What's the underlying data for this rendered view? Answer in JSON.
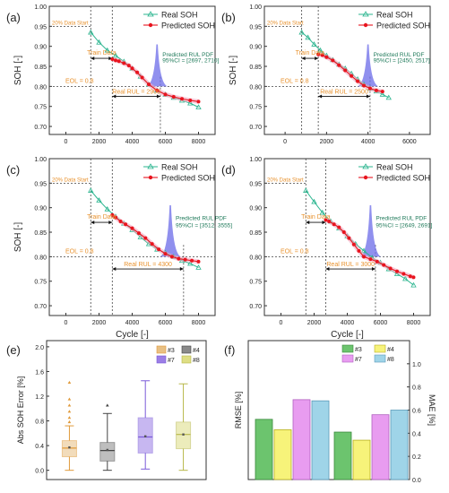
{
  "colors": {
    "real": "#2bb58f",
    "pred": "#e8141e",
    "pdf": "#6b6be8",
    "annot": "#e8922e",
    "ci": "#1f7a5a",
    "g3": "#6cc46e",
    "g4": "#f7f37a",
    "g7": "#e89cf0",
    "g8": "#9fd4e8",
    "b3": "#e8c084",
    "b4": "#8a8a8a",
    "b7": "#9b7ee6",
    "b8": "#dede84"
  },
  "chart_data": [
    {
      "id": "a",
      "panel": "(a)",
      "type": "line",
      "ylabel": "SOH [-]",
      "xlabel": "",
      "xlim": [
        -1000,
        9000
      ],
      "ylim": [
        0.68,
        1.0
      ],
      "xticks": [
        0,
        2000,
        4000,
        6000,
        8000
      ],
      "yticks": [
        0.7,
        0.75,
        0.8,
        0.85,
        0.9,
        0.95,
        1.0
      ],
      "legend": [
        "Real SOH",
        "Predicted SOH"
      ],
      "real": {
        "x": [
          1500,
          2000,
          2500,
          3000,
          3500,
          4000,
          4500,
          5000,
          5500,
          6000,
          6500,
          7000,
          7500,
          8000
        ],
        "y": [
          0.935,
          0.91,
          0.89,
          0.877,
          0.862,
          0.845,
          0.825,
          0.805,
          0.79,
          0.78,
          0.772,
          0.765,
          0.758,
          0.748
        ]
      },
      "pred": {
        "x": [
          2800,
          3000,
          3200,
          3500,
          3800,
          4000,
          4300,
          4600,
          5000,
          5500,
          6000,
          6500,
          7000,
          7500,
          8000
        ],
        "y": [
          0.868,
          0.865,
          0.863,
          0.858,
          0.852,
          0.845,
          0.835,
          0.822,
          0.805,
          0.79,
          0.78,
          0.774,
          0.769,
          0.765,
          0.762
        ]
      },
      "data_start": 1500,
      "train_end": 2800,
      "real_end": 5700,
      "pdf_peak": 5500,
      "labels": {
        "data_start": "20% Data Start",
        "train": "Train Data",
        "eol": "EOL = 0.8",
        "real_rul": "Real RUL = 2900",
        "pdf": "Predicted RUL PDF",
        "ci": "95%CI = [2697, 2710]"
      }
    },
    {
      "id": "b",
      "panel": "(b)",
      "type": "line",
      "ylabel": "SOH [-]",
      "xlabel": "",
      "xlim": [
        -1000,
        7000
      ],
      "ylim": [
        0.68,
        1.0
      ],
      "xticks": [
        0,
        2000,
        4000,
        6000
      ],
      "yticks": [
        0.7,
        0.75,
        0.8,
        0.85,
        0.9,
        0.95,
        1.0
      ],
      "legend": [
        "Real SOH",
        "Predicted SOH"
      ],
      "real": {
        "x": [
          800,
          1100,
          1400,
          1700,
          2000,
          2300,
          2600,
          2900,
          3200,
          3500,
          3800,
          4100,
          4400,
          4700,
          5000
        ],
        "y": [
          0.935,
          0.922,
          0.905,
          0.89,
          0.877,
          0.866,
          0.855,
          0.845,
          0.832,
          0.818,
          0.805,
          0.795,
          0.788,
          0.78,
          0.772
        ]
      },
      "pred": {
        "x": [
          1600,
          1800,
          2000,
          2300,
          2600,
          2900,
          3200,
          3500,
          3800,
          4100,
          4400,
          4700
        ],
        "y": [
          0.88,
          0.878,
          0.873,
          0.865,
          0.853,
          0.84,
          0.826,
          0.813,
          0.802,
          0.795,
          0.79,
          0.787
        ]
      },
      "data_start": 800,
      "train_end": 1600,
      "real_end": 4100,
      "pdf_peak": 4000,
      "labels": {
        "data_start": "20% Data Start",
        "train": "Train Data",
        "eol": "EOL = 0.8",
        "real_rul": "Real RUL = 2500",
        "pdf": "Predicted RUL PDF",
        "ci": "95%CI = [2450, 2517]"
      }
    },
    {
      "id": "c",
      "panel": "(c)",
      "type": "line",
      "ylabel": "SOH [-]",
      "xlabel": "Cycle [-]",
      "xlim": [
        -1000,
        9000
      ],
      "ylim": [
        0.68,
        1.0
      ],
      "xticks": [
        0,
        2000,
        4000,
        6000,
        8000
      ],
      "yticks": [
        0.7,
        0.75,
        0.8,
        0.85,
        0.9,
        0.95,
        1.0
      ],
      "legend": [
        "Real SOH",
        "Predicted SOH"
      ],
      "real": {
        "x": [
          1500,
          2000,
          2500,
          3000,
          3500,
          4000,
          4500,
          5000,
          5500,
          6000,
          6500,
          7000,
          7500,
          8000
        ],
        "y": [
          0.935,
          0.915,
          0.897,
          0.882,
          0.868,
          0.855,
          0.84,
          0.826,
          0.815,
          0.808,
          0.8,
          0.792,
          0.786,
          0.778
        ]
      },
      "pred": {
        "x": [
          2800,
          3000,
          3300,
          3600,
          4000,
          4400,
          4800,
          5200,
          5600,
          6000,
          6400,
          6800,
          7200,
          7600,
          8000
        ],
        "y": [
          0.885,
          0.88,
          0.872,
          0.866,
          0.858,
          0.848,
          0.838,
          0.826,
          0.815,
          0.806,
          0.8,
          0.796,
          0.794,
          0.792,
          0.79
        ]
      },
      "data_start": 1500,
      "train_end": 2800,
      "real_end": 7100,
      "pdf_peak": 6300,
      "labels": {
        "data_start": "20% Data Start",
        "train": "Train Data",
        "eol": "EOL = 0.8",
        "real_rul": "Real RUL = 4300",
        "pdf": "Predicted RUL PDF",
        "ci": "95%CI = [3512, 3555]"
      }
    },
    {
      "id": "d",
      "panel": "(d)",
      "type": "line",
      "ylabel": "",
      "xlabel": "Cycle [-]",
      "xlim": [
        -1000,
        9000
      ],
      "ylim": [
        0.68,
        1.0
      ],
      "xticks": [
        0,
        2000,
        4000,
        6000,
        8000
      ],
      "yticks": [
        0.7,
        0.75,
        0.8,
        0.85,
        0.9,
        0.95,
        1.0
      ],
      "legend": [
        "Real SOH",
        "Predicted SOH"
      ],
      "real": {
        "x": [
          1500,
          2000,
          2500,
          3000,
          3500,
          4000,
          4500,
          5000,
          5500,
          6000,
          6500,
          7000,
          7500,
          8000
        ],
        "y": [
          0.935,
          0.912,
          0.89,
          0.872,
          0.858,
          0.842,
          0.826,
          0.812,
          0.798,
          0.788,
          0.775,
          0.765,
          0.755,
          0.742
        ]
      },
      "pred": {
        "x": [
          2700,
          2900,
          3200,
          3500,
          3800,
          4100,
          4400,
          4700,
          5000,
          5400,
          5800,
          6200,
          6600,
          7000,
          7400,
          7800,
          8000
        ],
        "y": [
          0.875,
          0.872,
          0.866,
          0.86,
          0.85,
          0.838,
          0.825,
          0.812,
          0.8,
          0.795,
          0.79,
          0.783,
          0.776,
          0.77,
          0.765,
          0.76,
          0.758
        ]
      },
      "data_start": 1500,
      "train_end": 2700,
      "real_end": 5700,
      "pdf_peak": 5400,
      "labels": {
        "data_start": "20% Data Start",
        "train": "Train Data",
        "eol": "EOL = 0.8",
        "real_rul": "Real RUL = 3000",
        "pdf": "Predicted RUL PDF",
        "ci": "95%CI = [2649, 2691]"
      }
    },
    {
      "id": "e",
      "panel": "(e)",
      "type": "box",
      "ylabel": "Abs SOH Error [%]",
      "ylim": [
        -0.15,
        2.1
      ],
      "yticks": [
        0.0,
        0.4,
        0.8,
        1.2,
        1.6,
        2.0
      ],
      "legend": [
        "#3",
        "#4",
        "#7",
        "#8"
      ],
      "boxes": [
        {
          "name": "#3",
          "min": 0.0,
          "q1": 0.22,
          "median": 0.36,
          "q3": 0.48,
          "max": 0.72,
          "mean": 0.37,
          "outliers": [
            0.78,
            0.85,
            0.95,
            1.05,
            1.15,
            1.42
          ]
        },
        {
          "name": "#4",
          "min": 0.0,
          "q1": 0.15,
          "median": 0.32,
          "q3": 0.45,
          "max": 0.92,
          "mean": 0.33,
          "outliers": [
            1.05
          ]
        },
        {
          "name": "#7",
          "min": 0.02,
          "q1": 0.28,
          "median": 0.54,
          "q3": 0.85,
          "max": 1.45,
          "mean": 0.55,
          "outliers": []
        },
        {
          "name": "#8",
          "min": 0.0,
          "q1": 0.35,
          "median": 0.58,
          "q3": 0.78,
          "max": 1.4,
          "mean": 0.58,
          "outliers": []
        }
      ]
    },
    {
      "id": "f",
      "panel": "(f)",
      "type": "bar",
      "ylabel": "RMSE [%]",
      "y2label": "MAE [%]",
      "ylim": [
        0,
        1.2
      ],
      "y2ticks": [
        0.0,
        0.2,
        0.4,
        0.6,
        0.8,
        1.0
      ],
      "legend": [
        "#3",
        "#4",
        "#7",
        "#8"
      ],
      "groups": [
        {
          "name": "RMSE",
          "values": [
            0.52,
            0.43,
            0.69,
            0.68
          ]
        },
        {
          "name": "MAE",
          "values": [
            0.41,
            0.34,
            0.56,
            0.6
          ]
        }
      ]
    }
  ]
}
